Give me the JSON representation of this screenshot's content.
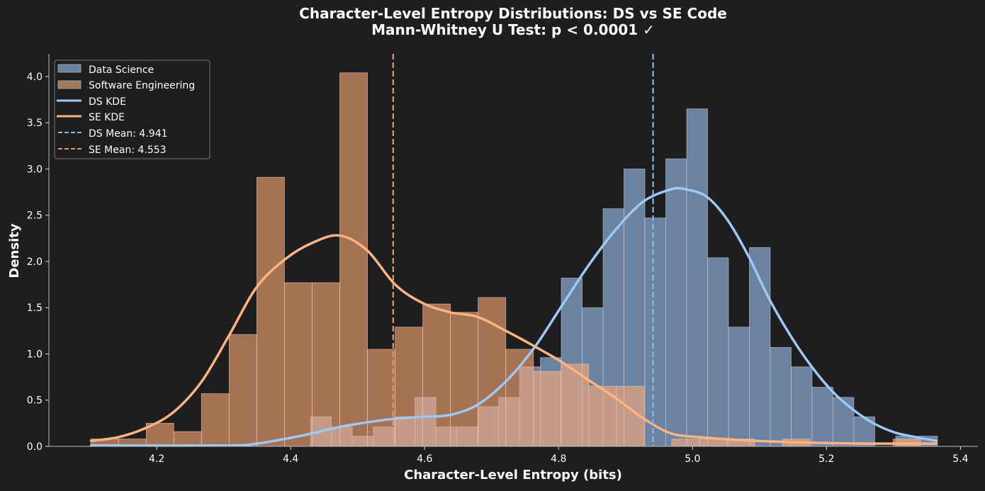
{
  "chart_data": {
    "type": "histogram",
    "title": "Character-Level Entropy Distributions: DS vs SE Code",
    "subtitle": "Mann-Whitney U Test: p < 0.0001 ✓",
    "xlabel": "Character-Level Entropy (bits)",
    "ylabel": "Density",
    "xlim": [
      4.039,
      5.426
    ],
    "ylim": [
      0,
      4.245
    ],
    "xticks": [
      "4.2",
      "4.4",
      "4.6",
      "4.8",
      "5.0",
      "5.2",
      "5.4"
    ],
    "yticks": [
      "0.0",
      "0.5",
      "1.0",
      "1.5",
      "2.0",
      "2.5",
      "3.0",
      "3.5",
      "4.0"
    ],
    "grid": false,
    "legend_position": "top-left",
    "histograms": [
      {
        "name": "Data Science",
        "color": "#6b83a0",
        "bin_start": 4.4296,
        "bin_width": 0.0312,
        "values": [
          0.32,
          0.21,
          0.11,
          0.21,
          0.32,
          0.53,
          0.21,
          0.21,
          0.43,
          0.53,
          0.86,
          0.96,
          1.82,
          1.5,
          2.57,
          3.0,
          2.47,
          3.11,
          3.65,
          2.04,
          1.29,
          2.15,
          1.07,
          0.86,
          0.64,
          0.53,
          0.32,
          0.0,
          0.11,
          0.11
        ]
      },
      {
        "name": "Software Engineering",
        "color": "#a3785a",
        "bin_start": 4.1016,
        "bin_width": 0.0413,
        "values": [
          0.08,
          0.08,
          0.25,
          0.16,
          0.57,
          1.21,
          2.91,
          1.77,
          1.77,
          4.04,
          1.05,
          1.29,
          1.54,
          1.45,
          1.61,
          1.05,
          0.81,
          0.89,
          0.65,
          0.65,
          0.0,
          0.08,
          0.08,
          0.08,
          0.0,
          0.08,
          0.0,
          0.0,
          0.0,
          0.08
        ]
      }
    ],
    "kde": [
      {
        "name": "DS KDE",
        "color": "#9ec8f5",
        "x": [
          4.102,
          4.308,
          4.349,
          4.391,
          4.432,
          4.473,
          4.514,
          4.556,
          4.597,
          4.638,
          4.679,
          4.721,
          4.762,
          4.803,
          4.844,
          4.886,
          4.927,
          4.968,
          4.99,
          5.021,
          5.052,
          5.084,
          5.114,
          5.146,
          5.177,
          5.208,
          5.239,
          5.27,
          5.302,
          5.333,
          5.364
        ],
        "y": [
          0.01,
          0.01,
          0.03,
          0.08,
          0.14,
          0.21,
          0.26,
          0.3,
          0.32,
          0.34,
          0.45,
          0.7,
          1.05,
          1.5,
          1.95,
          2.35,
          2.65,
          2.78,
          2.78,
          2.7,
          2.45,
          2.05,
          1.6,
          1.2,
          0.87,
          0.6,
          0.4,
          0.25,
          0.15,
          0.1,
          0.06
        ]
      },
      {
        "name": "SE KDE",
        "color": "#ffb380",
        "x": [
          4.102,
          4.143,
          4.184,
          4.225,
          4.267,
          4.308,
          4.349,
          4.391,
          4.432,
          4.473,
          4.514,
          4.556,
          4.597,
          4.638,
          4.679,
          4.721,
          4.762,
          4.803,
          4.844,
          4.886,
          4.927,
          4.968,
          5.01,
          5.092,
          5.175,
          5.257,
          5.364
        ],
        "y": [
          0.06,
          0.1,
          0.2,
          0.37,
          0.7,
          1.2,
          1.72,
          2.02,
          2.2,
          2.28,
          2.12,
          1.75,
          1.55,
          1.45,
          1.4,
          1.25,
          1.09,
          0.92,
          0.72,
          0.52,
          0.3,
          0.14,
          0.1,
          0.06,
          0.04,
          0.03,
          0.03
        ]
      }
    ],
    "means": [
      {
        "name": "DS Mean: 4.941",
        "value": 4.941,
        "color": "#8fb4e0"
      },
      {
        "name": "SE Mean: 4.553",
        "value": 4.553,
        "color": "#e09a6a"
      }
    ]
  }
}
